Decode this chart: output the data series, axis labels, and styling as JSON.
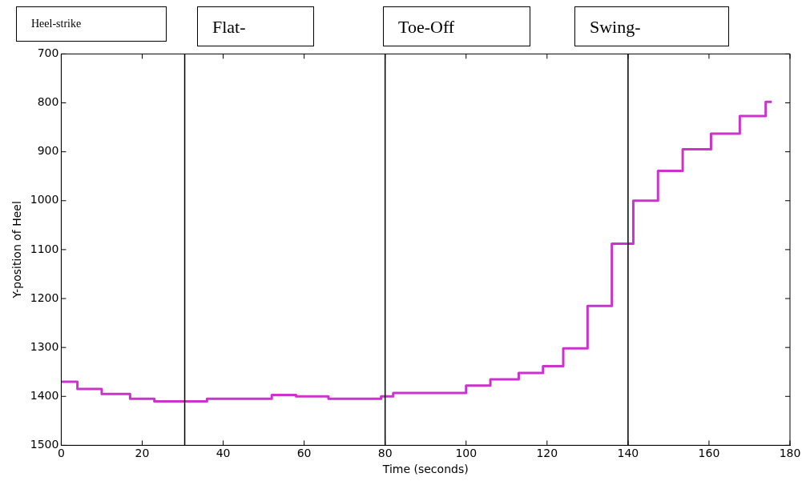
{
  "chart_data": {
    "type": "step",
    "xlabel": "Time (seconds)",
    "ylabel": "Y-position of Heel",
    "x": [
      0,
      4,
      10,
      17,
      23,
      36,
      52,
      58,
      66,
      79,
      82,
      100,
      106,
      113,
      119,
      124,
      130,
      136,
      141.3,
      147.4,
      153.5,
      160.5,
      167.6,
      174,
      175.5
    ],
    "series": [
      {
        "color": "#cc33cc",
        "values": [
          1370,
          1385,
          1395,
          1405,
          1410,
          1405,
          1397,
          1400,
          1405,
          1400,
          1393,
          1378,
          1365,
          1352,
          1338,
          1302,
          1215,
          1088,
          1000,
          939,
          895,
          863,
          827,
          798,
          798
        ]
      }
    ],
    "xlim": [
      0,
      180
    ],
    "xticks": [
      0,
      20,
      40,
      60,
      80,
      100,
      120,
      140,
      160,
      180
    ],
    "ylim": [
      1500,
      700
    ],
    "yticks": [
      700,
      800,
      900,
      1000,
      1100,
      1200,
      1300,
      1400,
      1500
    ],
    "ref_lines": [
      {
        "axis": "x",
        "value": 30.5,
        "color": "#000000"
      },
      {
        "axis": "x",
        "value": 80,
        "color": "#000000"
      },
      {
        "axis": "x",
        "value": 140,
        "color": "#000000"
      }
    ],
    "annotations": [
      "Heel-strike",
      "Flat-",
      "Toe-Off",
      "Swing-"
    ],
    "grid": false,
    "legend": false,
    "marker": "none",
    "line_style": "solid"
  }
}
